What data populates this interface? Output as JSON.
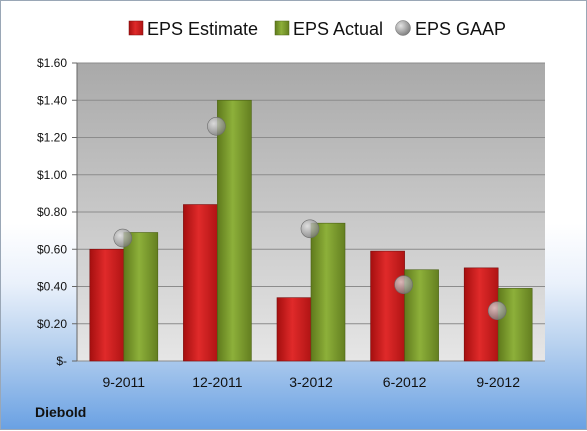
{
  "chart_data": {
    "type": "bar",
    "categories": [
      "9-2011",
      "12-2011",
      "3-2012",
      "6-2012",
      "9-2012"
    ],
    "series": [
      {
        "name": "EPS Estimate",
        "kind": "bar",
        "color": "#cc1f1f",
        "values": [
          0.6,
          0.84,
          0.34,
          0.59,
          0.5
        ]
      },
      {
        "name": "EPS Actual",
        "kind": "bar",
        "color": "#7d9b2e",
        "values": [
          0.69,
          1.4,
          0.74,
          0.49,
          0.39
        ]
      },
      {
        "name": "EPS GAAP",
        "kind": "marker",
        "color": "#9a9a9a",
        "values": [
          0.66,
          1.26,
          0.71,
          0.41,
          0.27
        ]
      }
    ],
    "yticks": [
      "$-",
      "$0.20",
      "$0.40",
      "$0.60",
      "$0.80",
      "$1.00",
      "$1.20",
      "$1.40",
      "$1.60"
    ],
    "ylim": [
      0,
      1.6
    ],
    "grid": true,
    "legend": "top"
  },
  "company": "Diebold"
}
